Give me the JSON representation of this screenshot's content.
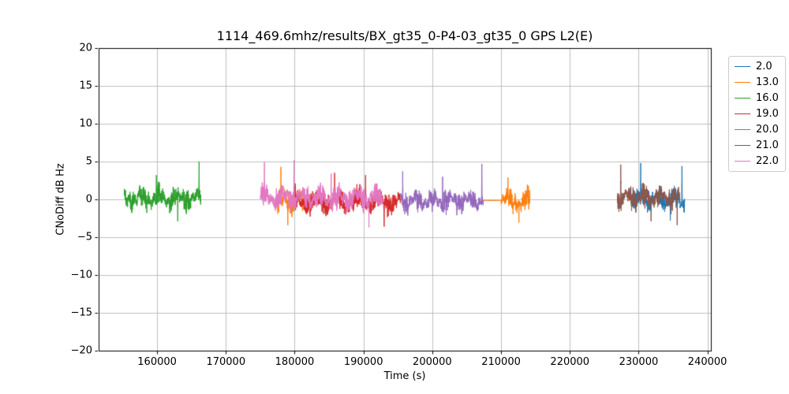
{
  "figure": {
    "background": "#ffffff"
  },
  "chart_data": {
    "type": "line",
    "title": "1114_469.6mhz/results/BX_gt35_0-P4-03_gt35_0 GPS L2(E)",
    "xlabel": "Time (s)",
    "ylabel": "CNoDiff dB Hz",
    "xlim": [
      151500,
      240500
    ],
    "ylim": [
      -20,
      20
    ],
    "xticks": [
      160000,
      170000,
      180000,
      190000,
      200000,
      210000,
      220000,
      230000,
      240000
    ],
    "yticks": [
      -20,
      -15,
      -10,
      -5,
      0,
      5,
      10,
      15,
      20
    ],
    "grid": true,
    "grid_color": "#b0b0b0",
    "spine_color": "#000000",
    "legend_position": "outside-upper-right",
    "series": [
      {
        "name": "2.0",
        "color": "#1f77b4",
        "segments": [
          {
            "t_start": 228900,
            "t_end": 236700,
            "mean": 0.0,
            "amplitude": 2.3,
            "spikes": [
              [
                230300,
                4.8
              ],
              [
                234600,
                -2.8
              ],
              [
                236300,
                4.4
              ]
            ]
          }
        ]
      },
      {
        "name": "13.0",
        "color": "#ff7f0e",
        "segments": [
          {
            "t_start": 177500,
            "t_end": 182100,
            "mean": -0.2,
            "amplitude": 2.5,
            "spikes": [
              [
                178000,
                4.3
              ],
              [
                179000,
                -3.4
              ]
            ]
          },
          {
            "t_start": 207400,
            "t_end": 209950,
            "mean": -0.15,
            "amplitude": 0.05,
            "flat": true,
            "spikes": []
          },
          {
            "t_start": 210000,
            "t_end": 214200,
            "mean": -0.2,
            "amplitude": 2.4,
            "spikes": [
              [
                211000,
                2.9
              ],
              [
                212600,
                -3.1
              ]
            ]
          }
        ]
      },
      {
        "name": "16.0",
        "color": "#2ca02c",
        "segments": [
          {
            "t_start": 155200,
            "t_end": 166400,
            "mean": 0.1,
            "amplitude": 2.3,
            "spikes": [
              [
                159900,
                3.2
              ],
              [
                163000,
                -2.9
              ],
              [
                166100,
                5.0
              ]
            ]
          }
        ]
      },
      {
        "name": "19.0",
        "color": "#d62728",
        "segments": [
          {
            "t_start": 180000,
            "t_end": 195400,
            "mean": -0.3,
            "amplitude": 2.4,
            "spikes": [
              [
                185800,
                3.5
              ],
              [
                190300,
                3.2
              ],
              [
                193000,
                -3.6
              ]
            ]
          }
        ]
      },
      {
        "name": "20.0",
        "color": "#9467bd",
        "segments": [
          {
            "t_start": 195400,
            "t_end": 207400,
            "mean": -0.2,
            "amplitude": 2.2,
            "spikes": [
              [
                195700,
                3.7
              ],
              [
                201500,
                3.0
              ],
              [
                207200,
                4.7
              ]
            ]
          }
        ]
      },
      {
        "name": "21.0",
        "color": "#8c564b",
        "segments": [
          {
            "t_start": 226900,
            "t_end": 236000,
            "mean": 0.3,
            "amplitude": 2.3,
            "spikes": [
              [
                227400,
                4.6
              ],
              [
                231800,
                -2.9
              ],
              [
                235600,
                -3.4
              ]
            ]
          }
        ]
      },
      {
        "name": "22.0",
        "color": "#e377c2",
        "segments": [
          {
            "t_start": 175000,
            "t_end": 192800,
            "mean": 0.2,
            "amplitude": 2.5,
            "spikes": [
              [
                175600,
                4.9
              ],
              [
                179900,
                5.2
              ],
              [
                185300,
                3.4
              ],
              [
                190800,
                -3.7
              ]
            ]
          }
        ]
      }
    ]
  }
}
